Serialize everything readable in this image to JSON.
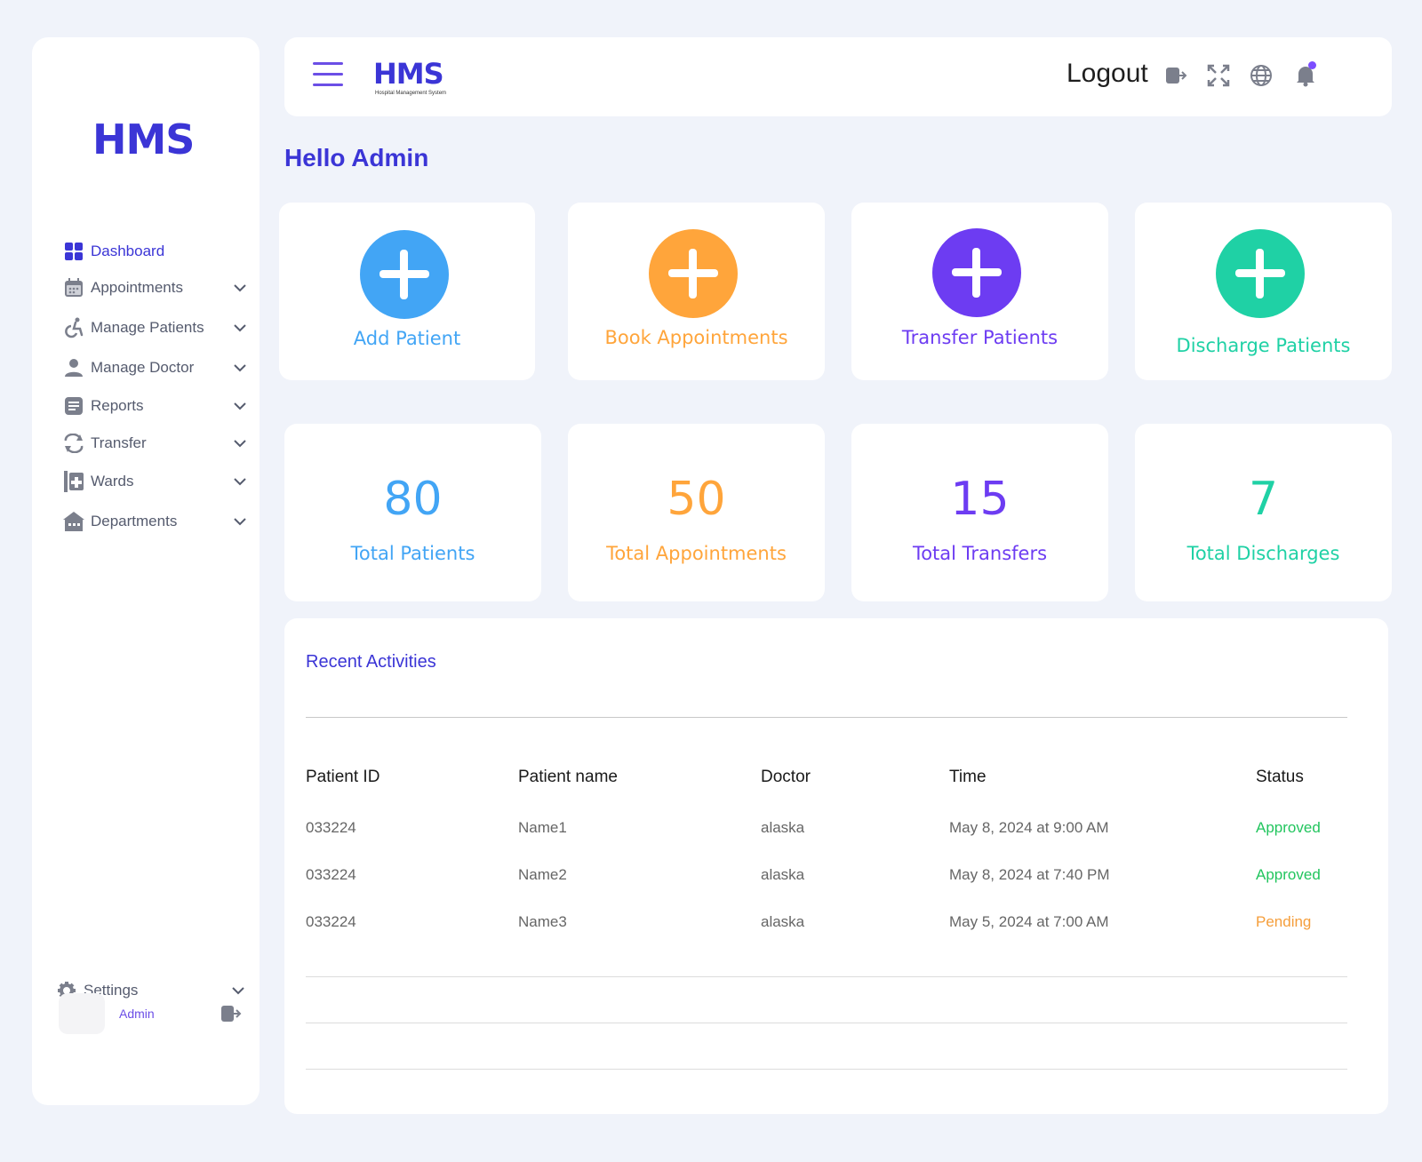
{
  "sidebar": {
    "logo": "HMS",
    "items": [
      {
        "label": "Dashboard",
        "icon": "dashboard-grid-icon"
      },
      {
        "label": "Appointments",
        "icon": "calendar-icon"
      },
      {
        "label": "Manage Patients",
        "icon": "wheelchair-icon"
      },
      {
        "label": "Manage Doctor",
        "icon": "user-icon"
      },
      {
        "label": "Reports",
        "icon": "document-icon"
      },
      {
        "label": "Transfer",
        "icon": "transfer-arrows-icon"
      },
      {
        "label": "Wards",
        "icon": "ward-icon"
      },
      {
        "label": "Departments",
        "icon": "building-icon"
      }
    ],
    "settings_label": "Settings",
    "user_name": "Admin"
  },
  "topbar": {
    "logo": "HMS",
    "logo_subtitle": "Hospital Management System",
    "logout_label": "Logout"
  },
  "greeting": "Hello Admin",
  "actions": [
    {
      "label": "Add Patient",
      "color": "#42a5f5"
    },
    {
      "label": "Book Appointments",
      "color": "#ffa53b"
    },
    {
      "label": "Transfer Patients",
      "color": "#6d3cf2"
    },
    {
      "label": "Discharge Patients",
      "color": "#1fd1a5"
    }
  ],
  "stats": [
    {
      "value": "80",
      "label": "Total Patients",
      "color": "#42a5f5"
    },
    {
      "value": "50",
      "label": "Total Appointments",
      "color": "#ffa53b"
    },
    {
      "value": "15",
      "label": "Total Transfers",
      "color": "#6d3cf2"
    },
    {
      "value": "7",
      "label": "Total Discharges",
      "color": "#1fd1a5"
    }
  ],
  "recent": {
    "title": "Recent Activities",
    "columns": [
      "Patient ID",
      "Patient name",
      "Doctor",
      "Time",
      "Status"
    ],
    "rows": [
      [
        "033224",
        "Name1",
        "alaska",
        "May 8, 2024 at 9:00 AM",
        "Approved"
      ],
      [
        "033224",
        "Name2",
        "alaska",
        "May 8, 2024 at 7:40 PM",
        "Approved"
      ],
      [
        "033224",
        "Name3",
        "alaska",
        "May 5, 2024 at 7:00 AM",
        "Pending"
      ]
    ]
  },
  "colors": {
    "brand": "#3b35d6",
    "approved": "#22c55e",
    "pending": "#f59e3b"
  }
}
